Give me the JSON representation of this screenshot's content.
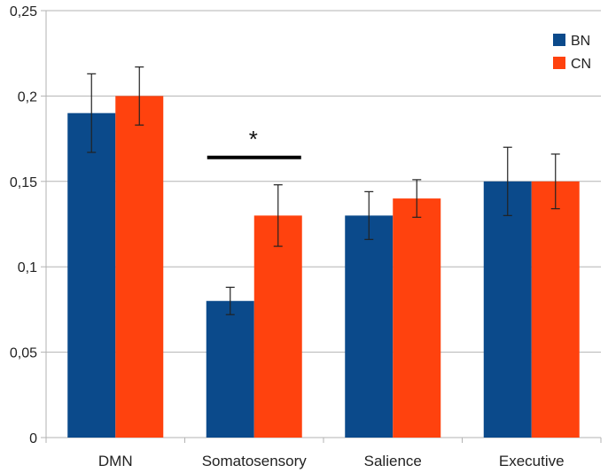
{
  "chart_data": {
    "type": "bar",
    "title": "",
    "xlabel": "",
    "ylabel": "",
    "ylim": [
      0,
      0.25
    ],
    "yticks": [
      0,
      0.05,
      0.1,
      0.15,
      0.2,
      0.25
    ],
    "ytick_labels": [
      "0",
      "0,05",
      "0,1",
      "0,15",
      "0,2",
      "0,25"
    ],
    "grid": true,
    "legend_position": "top-right",
    "categories": [
      "DMN",
      "Somatosensory",
      "Salience",
      "Executive"
    ],
    "series": [
      {
        "name": "BN",
        "color": "#0b4a8b",
        "values": [
          0.19,
          0.08,
          0.13,
          0.15
        ],
        "errors": [
          0.023,
          0.008,
          0.014,
          0.02
        ]
      },
      {
        "name": "CN",
        "color": "#ff420e",
        "values": [
          0.2,
          0.13,
          0.14,
          0.15
        ],
        "errors": [
          0.017,
          0.018,
          0.011,
          0.016
        ]
      }
    ],
    "annotations": [
      {
        "text": "*",
        "category": "Somatosensory",
        "y": 0.164
      }
    ]
  }
}
